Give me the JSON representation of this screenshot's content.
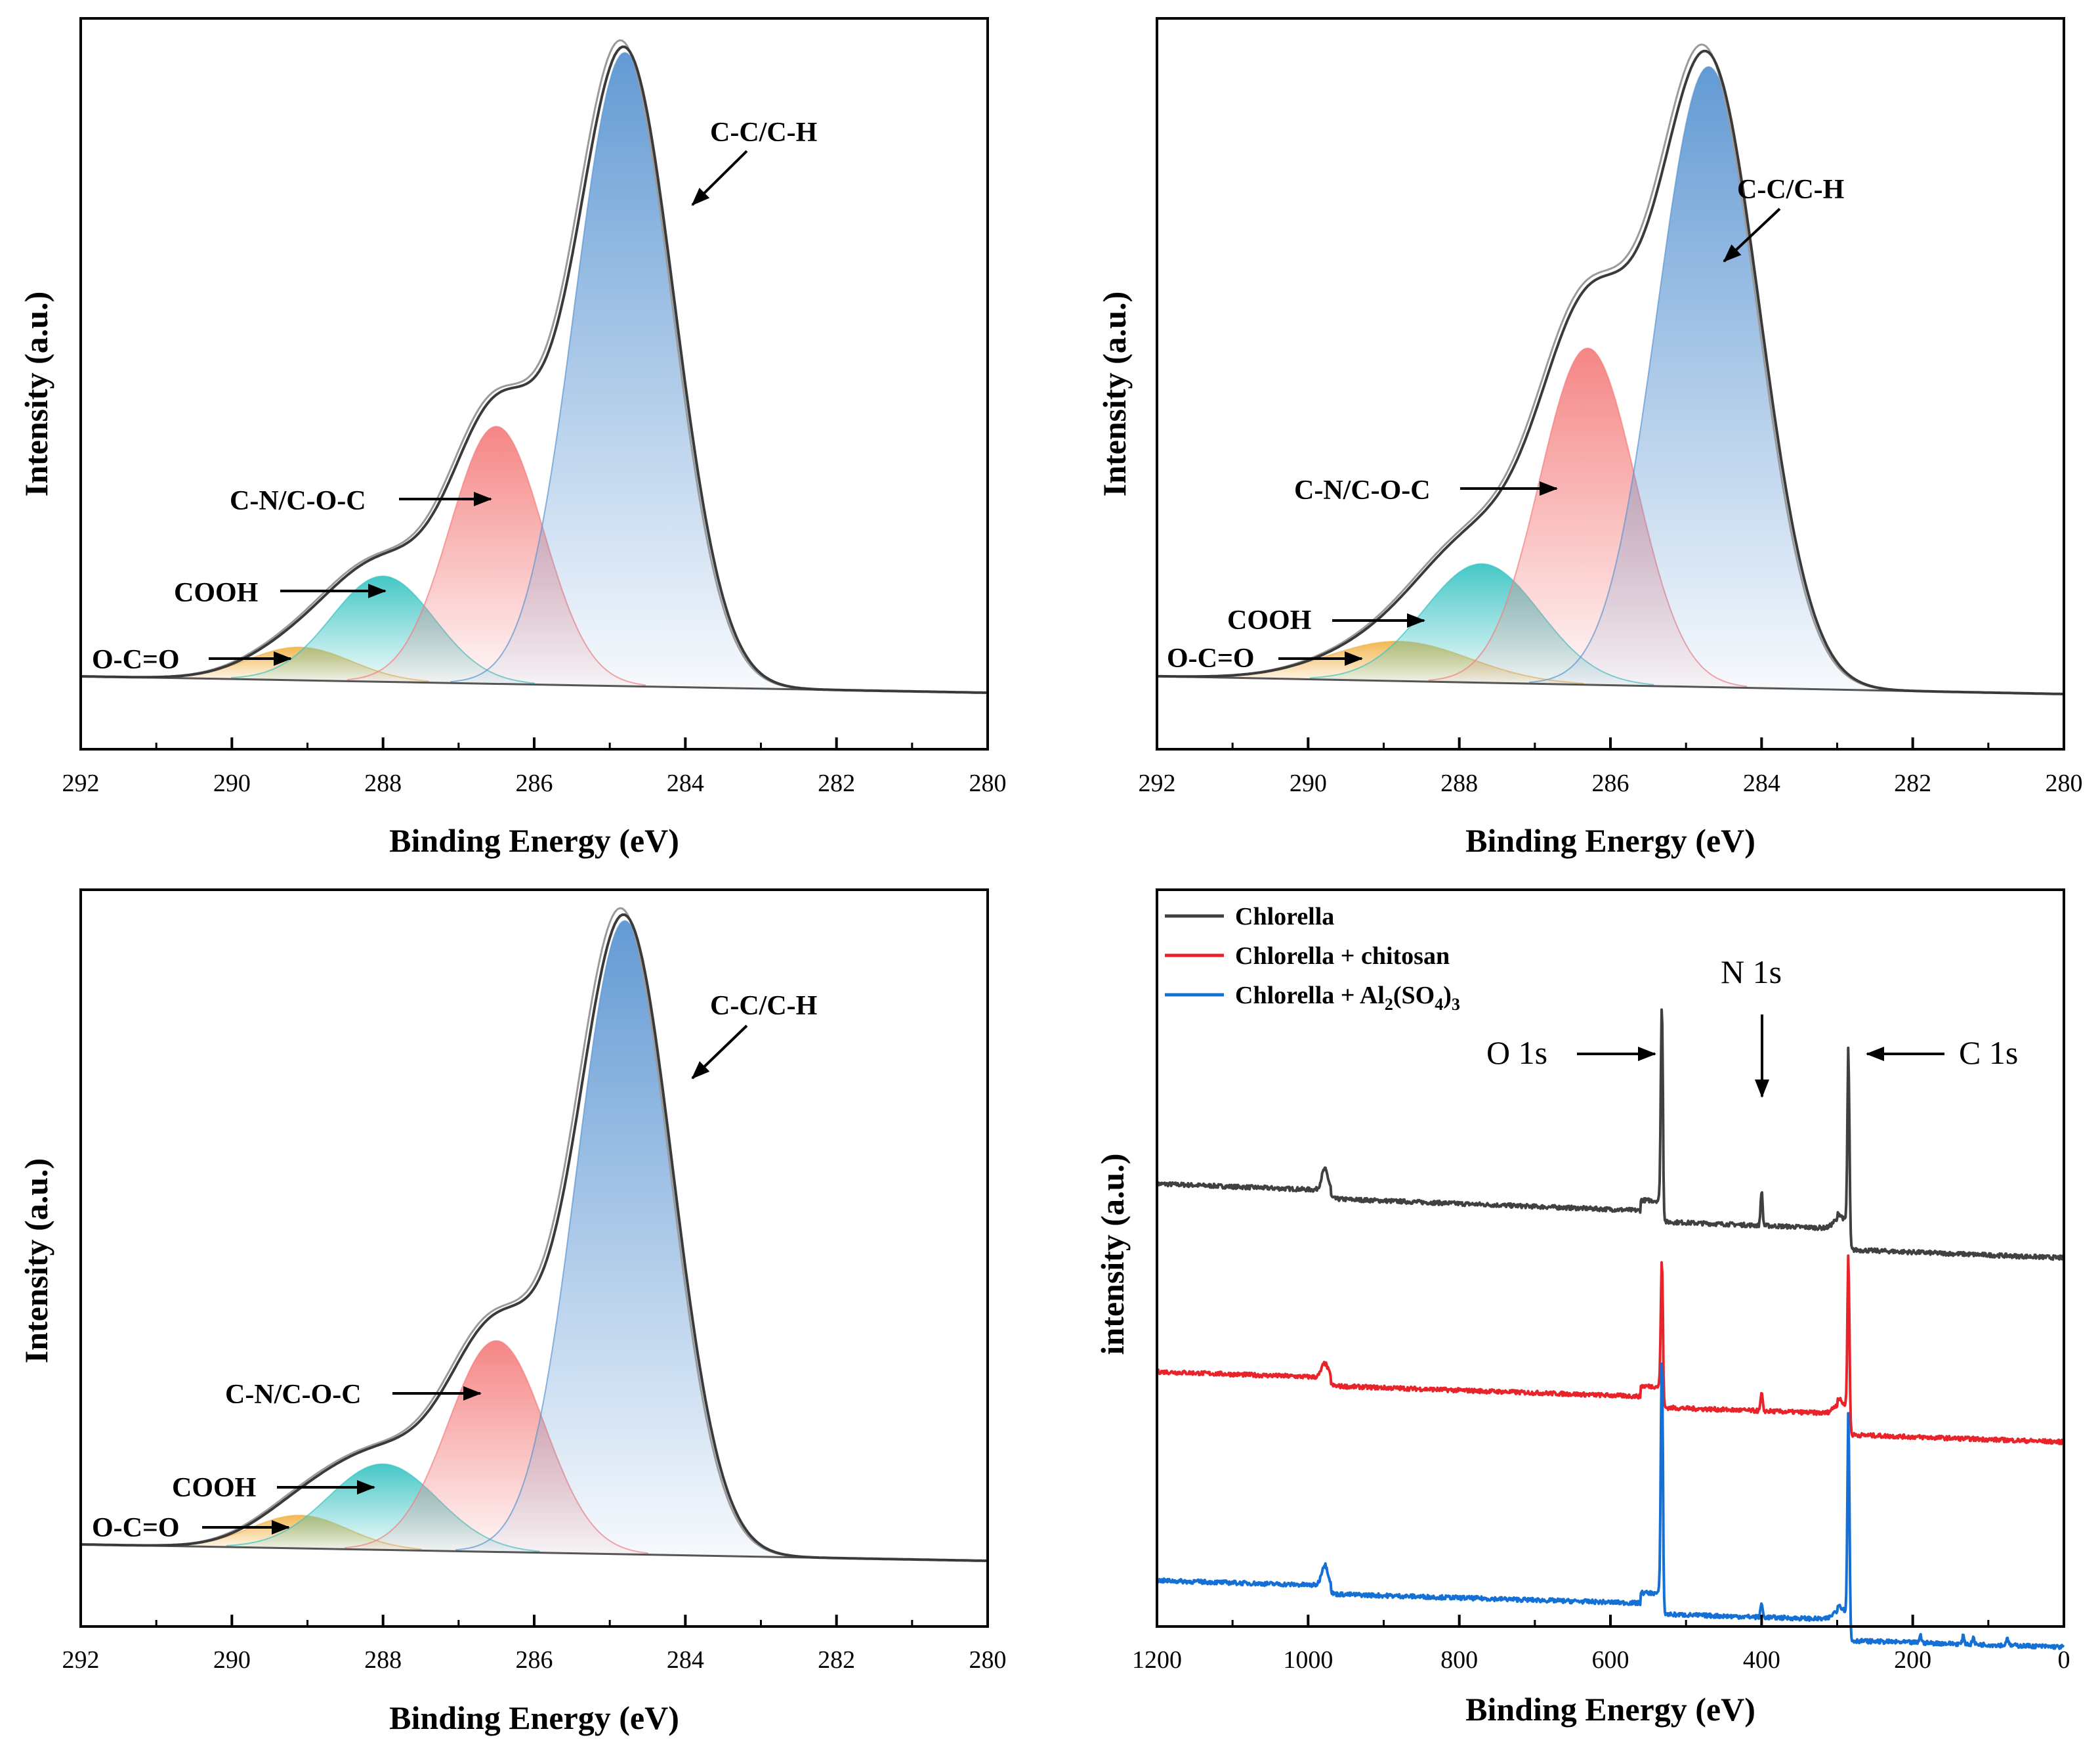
{
  "chart_data": [
    {
      "type": "area",
      "panel": "top-left",
      "xlabel": "Binding Energy (eV)",
      "ylabel": "Intensity (a.u.)",
      "xlim": [
        292,
        280
      ],
      "x_ticks": [
        "292",
        "290",
        "288",
        "286",
        "284",
        "282",
        "280"
      ],
      "ylim": [
        0,
        1
      ],
      "baseline": {
        "start": 0.05,
        "end": 0.0
      },
      "components": [
        {
          "name": "O-C=O",
          "center": 289.1,
          "fwhm": 1.6,
          "height": 0.05,
          "color": "#f2b44a"
        },
        {
          "name": "COOH",
          "center": 288.0,
          "fwhm": 1.6,
          "height": 0.16,
          "color": "#3cc4c4"
        },
        {
          "name": "C-N/C-O-C",
          "center": 286.5,
          "fwhm": 1.45,
          "height": 0.39,
          "color": "#f57f7f"
        },
        {
          "name": "C-C/C-H",
          "center": 284.8,
          "fwhm": 1.55,
          "height": 0.96,
          "color": "#5b95d2"
        }
      ],
      "annotations": [
        {
          "text": "C-C/C-H",
          "points_to": "C-C/C-H peak"
        },
        {
          "text": "C-N/C-O-C",
          "points_to": "C-N/C-O-C peak"
        },
        {
          "text": "COOH",
          "points_to": "COOH peak"
        },
        {
          "text": "O-C=O",
          "points_to": "O-C=O peak"
        }
      ]
    },
    {
      "type": "area",
      "panel": "top-right",
      "xlabel": "Binding Energy (eV)",
      "ylabel": "Intensity (a.u.)",
      "xlim": [
        292,
        280
      ],
      "x_ticks": [
        "292",
        "290",
        "288",
        "286",
        "284",
        "282",
        "280"
      ],
      "ylim": [
        0,
        1
      ],
      "baseline": {
        "start": 0.05,
        "end": 0.0
      },
      "components": [
        {
          "name": "O-C=O",
          "center": 288.8,
          "fwhm": 2.2,
          "height": 0.06,
          "color": "#f2b44a"
        },
        {
          "name": "COOH",
          "center": 287.7,
          "fwhm": 1.8,
          "height": 0.18,
          "color": "#3cc4c4"
        },
        {
          "name": "C-N/C-O-C",
          "center": 286.3,
          "fwhm": 1.5,
          "height": 0.51,
          "color": "#f57f7f"
        },
        {
          "name": "C-C/C-H",
          "center": 284.7,
          "fwhm": 1.6,
          "height": 0.94,
          "color": "#5b95d2"
        }
      ],
      "annotations": [
        {
          "text": "C-C/C-H",
          "points_to": "C-C/C-H peak"
        },
        {
          "text": "C-N/C-O-C",
          "points_to": "C-N/C-O-C peak"
        },
        {
          "text": "COOH",
          "points_to": "COOH peak"
        },
        {
          "text": "O-C=O",
          "points_to": "O-C=O peak"
        }
      ]
    },
    {
      "type": "area",
      "panel": "bottom-left",
      "xlabel": "Binding Energy (eV)",
      "ylabel": "Intensity (a.u.)",
      "xlim": [
        292,
        280
      ],
      "x_ticks": [
        "292",
        "290",
        "288",
        "286",
        "284",
        "282",
        "280"
      ],
      "ylim": [
        0,
        1
      ],
      "baseline": {
        "start": 0.05,
        "end": 0.0
      },
      "components": [
        {
          "name": "O-C=O",
          "center": 289.1,
          "fwhm": 1.5,
          "height": 0.05,
          "color": "#f2b44a"
        },
        {
          "name": "COOH",
          "center": 288.0,
          "fwhm": 1.7,
          "height": 0.13,
          "color": "#3cc4c4"
        },
        {
          "name": "C-N/C-O-C",
          "center": 286.5,
          "fwhm": 1.5,
          "height": 0.32,
          "color": "#f57f7f"
        },
        {
          "name": "C-C/C-H",
          "center": 284.8,
          "fwhm": 1.5,
          "height": 0.96,
          "color": "#5b95d2"
        }
      ],
      "annotations": [
        {
          "text": "C-C/C-H",
          "points_to": "C-C/C-H peak"
        },
        {
          "text": "C-N/C-O-C",
          "points_to": "C-N/C-O-C peak"
        },
        {
          "text": "COOH",
          "points_to": "COOH peak"
        },
        {
          "text": "O-C=O",
          "points_to": "O-C=O peak"
        }
      ]
    },
    {
      "type": "line",
      "panel": "bottom-right",
      "xlabel": "Binding Energy (eV)",
      "ylabel": "intensity (a.u.)",
      "xlim": [
        1200,
        0
      ],
      "x_ticks": [
        "1200",
        "1000",
        "800",
        "600",
        "400",
        "200",
        "0"
      ],
      "legend_position": "top-left",
      "series": [
        {
          "name": "Chlorella",
          "color": "#404040",
          "base_start": 0.62,
          "base_end": 0.53,
          "peaks": {
            "O1s": 0.28,
            "N1s": 0.05,
            "C1s": 0.26,
            "O_KLL": 0.03
          }
        },
        {
          "name": "Chlorella + chitosan",
          "color": "#e8232a",
          "base_start": 0.35,
          "base_end": 0.27,
          "peaks": {
            "O1s": 0.18,
            "N1s": 0.025,
            "C1s": 0.23,
            "O_KLL": 0.02
          }
        },
        {
          "name": "Chlorella + Al2(SO4)3",
          "color": "#1570d6",
          "base_start": 0.05,
          "base_end": -0.02,
          "peaks": {
            "O1s": 0.34,
            "N1s": 0.02,
            "C1s": 0.3,
            "O_KLL": 0.03
          }
        }
      ],
      "legend": {
        "item1": "Chlorella",
        "item2": "Chlorella + chitosan",
        "item3_prefix": "Chlorella + Al",
        "item3_sub1": "2",
        "item3_mid": "(SO",
        "item3_sub2": "4",
        "item3_close": ")",
        "item3_sub3": "3"
      },
      "annotations": [
        {
          "text": "O 1s",
          "x": 532
        },
        {
          "text": "N 1s",
          "x": 400
        },
        {
          "text": "C 1s",
          "x": 285
        }
      ]
    }
  ]
}
